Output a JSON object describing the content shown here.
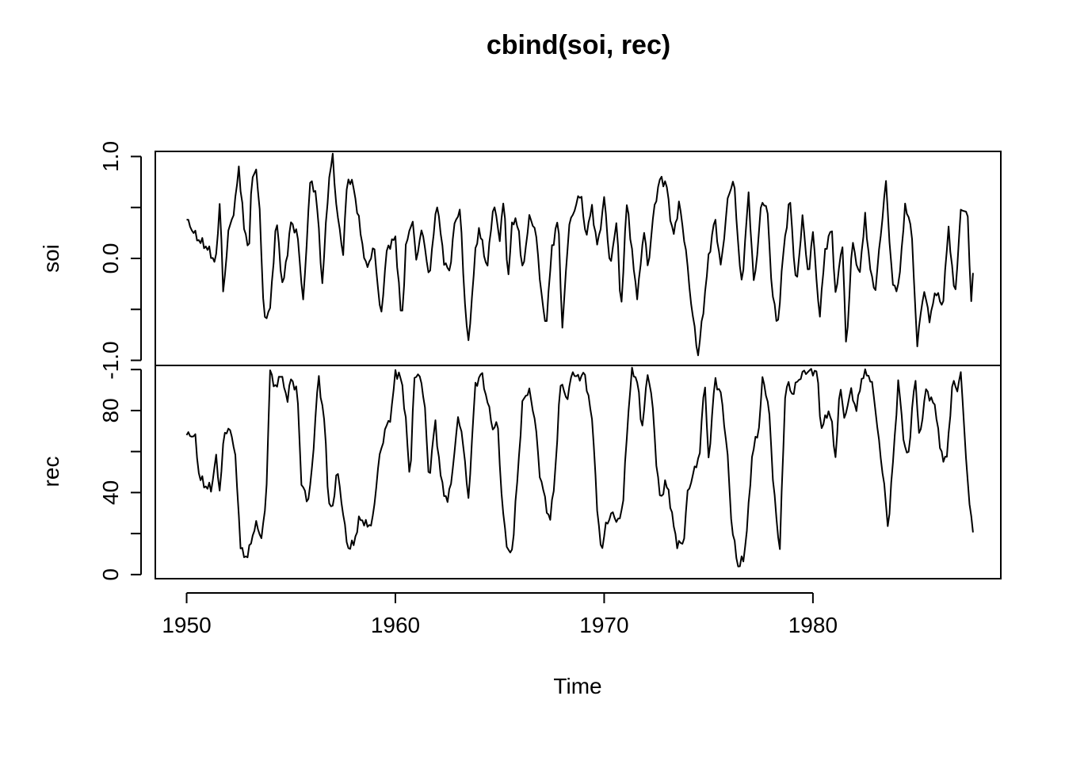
{
  "chart_data": {
    "type": "line",
    "title": "cbind(soi, rec)",
    "xlabel": "Time",
    "x": {
      "start": 1950.0,
      "end": 1987.667,
      "step": 0.0833333,
      "ticks": [
        1950,
        1960,
        1970,
        1980
      ],
      "tick_labels": [
        "1950",
        "1960",
        "1970",
        "1980"
      ],
      "range": [
        1948.5,
        1989.0
      ]
    },
    "panels": [
      {
        "name": "soi",
        "ylabel": "soi",
        "ylim": [
          -1.05,
          1.05
        ],
        "ticks": [
          -1.0,
          -0.5,
          0.0,
          0.5,
          1.0
        ],
        "tick_labels": [
          "-1.0",
          "",
          "0.0",
          "",
          "1.0"
        ],
        "anchors": [
          [
            1950.0,
            0.38
          ],
          [
            1950.5,
            0.2
          ],
          [
            1951.0,
            0.1
          ],
          [
            1951.4,
            -0.05
          ],
          [
            1951.6,
            0.6
          ],
          [
            1951.75,
            -0.35
          ],
          [
            1952.0,
            0.25
          ],
          [
            1952.3,
            0.5
          ],
          [
            1952.5,
            0.9
          ],
          [
            1952.75,
            0.3
          ],
          [
            1953.0,
            0.1
          ],
          [
            1953.1,
            0.75
          ],
          [
            1953.3,
            0.9
          ],
          [
            1953.5,
            0.5
          ],
          [
            1953.7,
            -0.6
          ],
          [
            1954.0,
            -0.5
          ],
          [
            1954.3,
            0.4
          ],
          [
            1954.6,
            -0.3
          ],
          [
            1955.0,
            0.35
          ],
          [
            1955.3,
            0.25
          ],
          [
            1955.6,
            -0.45
          ],
          [
            1955.9,
            0.75
          ],
          [
            1956.2,
            0.65
          ],
          [
            1956.5,
            -0.25
          ],
          [
            1956.8,
            0.75
          ],
          [
            1957.0,
            1.0
          ],
          [
            1957.2,
            0.45
          ],
          [
            1957.5,
            0.05
          ],
          [
            1957.7,
            0.8
          ],
          [
            1958.0,
            0.7
          ],
          [
            1958.3,
            0.3
          ],
          [
            1958.6,
            -0.1
          ],
          [
            1959.0,
            0.1
          ],
          [
            1959.3,
            -0.6
          ],
          [
            1959.6,
            0.1
          ],
          [
            1960.0,
            0.2
          ],
          [
            1960.3,
            -0.65
          ],
          [
            1960.5,
            0.1
          ],
          [
            1960.8,
            0.4
          ],
          [
            1961.0,
            0.0
          ],
          [
            1961.3,
            0.3
          ],
          [
            1961.6,
            -0.2
          ],
          [
            1962.0,
            0.55
          ],
          [
            1962.3,
            0.0
          ],
          [
            1962.6,
            -0.15
          ],
          [
            1962.8,
            0.3
          ],
          [
            1963.1,
            0.5
          ],
          [
            1963.3,
            -0.35
          ],
          [
            1963.5,
            -0.85
          ],
          [
            1963.8,
            0.0
          ],
          [
            1964.0,
            0.3
          ],
          [
            1964.4,
            -0.1
          ],
          [
            1964.7,
            0.55
          ],
          [
            1965.0,
            0.2
          ],
          [
            1965.2,
            0.6
          ],
          [
            1965.4,
            -0.25
          ],
          [
            1965.6,
            0.4
          ],
          [
            1965.9,
            0.3
          ],
          [
            1966.1,
            -0.15
          ],
          [
            1966.4,
            0.4
          ],
          [
            1966.7,
            0.3
          ],
          [
            1967.0,
            -0.35
          ],
          [
            1967.2,
            -0.7
          ],
          [
            1967.5,
            0.1
          ],
          [
            1967.8,
            0.4
          ],
          [
            1968.0,
            -0.7
          ],
          [
            1968.3,
            0.3
          ],
          [
            1968.6,
            0.5
          ],
          [
            1968.9,
            0.65
          ],
          [
            1969.1,
            0.2
          ],
          [
            1969.4,
            0.5
          ],
          [
            1969.7,
            0.1
          ],
          [
            1970.0,
            0.6
          ],
          [
            1970.3,
            -0.1
          ],
          [
            1970.6,
            0.4
          ],
          [
            1970.8,
            -0.55
          ],
          [
            1971.1,
            0.6
          ],
          [
            1971.3,
            0.1
          ],
          [
            1971.6,
            -0.4
          ],
          [
            1971.9,
            0.3
          ],
          [
            1972.1,
            -0.1
          ],
          [
            1972.4,
            0.5
          ],
          [
            1972.7,
            0.8
          ],
          [
            1973.0,
            0.7
          ],
          [
            1973.3,
            0.2
          ],
          [
            1973.6,
            0.55
          ],
          [
            1973.9,
            0.1
          ],
          [
            1974.2,
            -0.5
          ],
          [
            1974.5,
            -0.95
          ],
          [
            1974.7,
            -0.6
          ],
          [
            1975.0,
            0.0
          ],
          [
            1975.3,
            0.4
          ],
          [
            1975.6,
            -0.1
          ],
          [
            1975.9,
            0.55
          ],
          [
            1976.2,
            0.8
          ],
          [
            1976.4,
            0.2
          ],
          [
            1976.6,
            -0.3
          ],
          [
            1976.9,
            0.65
          ],
          [
            1977.2,
            -0.3
          ],
          [
            1977.5,
            0.5
          ],
          [
            1977.8,
            0.55
          ],
          [
            1978.0,
            -0.2
          ],
          [
            1978.3,
            -0.7
          ],
          [
            1978.6,
            0.1
          ],
          [
            1978.9,
            0.6
          ],
          [
            1979.2,
            -0.3
          ],
          [
            1979.5,
            0.4
          ],
          [
            1979.8,
            -0.2
          ],
          [
            1980.0,
            0.3
          ],
          [
            1980.3,
            -0.6
          ],
          [
            1980.6,
            0.1
          ],
          [
            1980.9,
            0.3
          ],
          [
            1981.1,
            -0.4
          ],
          [
            1981.4,
            0.2
          ],
          [
            1981.6,
            -0.9
          ],
          [
            1981.9,
            0.2
          ],
          [
            1982.2,
            -0.2
          ],
          [
            1982.5,
            0.4
          ],
          [
            1982.8,
            -0.2
          ],
          [
            1983.0,
            -0.3
          ],
          [
            1983.3,
            0.35
          ],
          [
            1983.5,
            0.75
          ],
          [
            1983.8,
            -0.25
          ],
          [
            1984.1,
            -0.3
          ],
          [
            1984.4,
            0.5
          ],
          [
            1984.7,
            0.35
          ],
          [
            1985.0,
            -0.85
          ],
          [
            1985.3,
            -0.3
          ],
          [
            1985.6,
            -0.6
          ],
          [
            1985.9,
            -0.3
          ],
          [
            1986.2,
            -0.5
          ],
          [
            1986.5,
            0.3
          ],
          [
            1986.8,
            -0.4
          ],
          [
            1987.1,
            0.5
          ],
          [
            1987.4,
            0.45
          ],
          [
            1987.6,
            -0.5
          ],
          [
            1987.7,
            0.05
          ]
        ]
      },
      {
        "name": "rec",
        "ylabel": "rec",
        "ylim": [
          -2,
          102
        ],
        "ticks": [
          0,
          20,
          40,
          60,
          80,
          100
        ],
        "tick_labels": [
          "0",
          "",
          "40",
          "",
          "80",
          ""
        ],
        "anchors": [
          [
            1950.0,
            68
          ],
          [
            1950.4,
            68
          ],
          [
            1950.6,
            48
          ],
          [
            1950.9,
            43
          ],
          [
            1951.2,
            42
          ],
          [
            1951.4,
            58
          ],
          [
            1951.6,
            40
          ],
          [
            1951.8,
            70
          ],
          [
            1952.1,
            70
          ],
          [
            1952.3,
            62
          ],
          [
            1952.6,
            12
          ],
          [
            1952.8,
            8
          ],
          [
            1953.0,
            12
          ],
          [
            1953.3,
            25
          ],
          [
            1953.6,
            18
          ],
          [
            1953.8,
            35
          ],
          [
            1954.0,
            99
          ],
          [
            1954.3,
            90
          ],
          [
            1954.5,
            99
          ],
          [
            1954.8,
            85
          ],
          [
            1955.0,
            95
          ],
          [
            1955.3,
            90
          ],
          [
            1955.5,
            45
          ],
          [
            1955.8,
            35
          ],
          [
            1956.0,
            50
          ],
          [
            1956.3,
            97
          ],
          [
            1956.6,
            75
          ],
          [
            1956.8,
            35
          ],
          [
            1957.0,
            32
          ],
          [
            1957.2,
            52
          ],
          [
            1957.5,
            30
          ],
          [
            1957.7,
            13
          ],
          [
            1958.0,
            15
          ],
          [
            1958.3,
            28
          ],
          [
            1958.6,
            24
          ],
          [
            1958.9,
            25
          ],
          [
            1959.2,
            55
          ],
          [
            1959.5,
            70
          ],
          [
            1959.8,
            78
          ],
          [
            1960.0,
            99
          ],
          [
            1960.3,
            95
          ],
          [
            1960.5,
            75
          ],
          [
            1960.7,
            45
          ],
          [
            1960.9,
            95
          ],
          [
            1961.1,
            99
          ],
          [
            1961.4,
            85
          ],
          [
            1961.6,
            45
          ],
          [
            1961.9,
            75
          ],
          [
            1962.2,
            45
          ],
          [
            1962.5,
            35
          ],
          [
            1962.8,
            55
          ],
          [
            1963.0,
            78
          ],
          [
            1963.3,
            60
          ],
          [
            1963.5,
            35
          ],
          [
            1963.8,
            90
          ],
          [
            1964.1,
            99
          ],
          [
            1964.4,
            85
          ],
          [
            1964.7,
            70
          ],
          [
            1964.9,
            75
          ],
          [
            1965.1,
            35
          ],
          [
            1965.4,
            10
          ],
          [
            1965.6,
            12
          ],
          [
            1965.9,
            55
          ],
          [
            1966.1,
            85
          ],
          [
            1966.4,
            90
          ],
          [
            1966.7,
            75
          ],
          [
            1966.9,
            50
          ],
          [
            1967.2,
            35
          ],
          [
            1967.4,
            25
          ],
          [
            1967.7,
            55
          ],
          [
            1967.9,
            95
          ],
          [
            1968.2,
            85
          ],
          [
            1968.5,
            99
          ],
          [
            1968.8,
            95
          ],
          [
            1969.0,
            99
          ],
          [
            1969.3,
            85
          ],
          [
            1969.5,
            65
          ],
          [
            1969.7,
            25
          ],
          [
            1969.9,
            12
          ],
          [
            1970.1,
            25
          ],
          [
            1970.4,
            30
          ],
          [
            1970.7,
            25
          ],
          [
            1970.9,
            35
          ],
          [
            1971.1,
            70
          ],
          [
            1971.3,
            99
          ],
          [
            1971.6,
            95
          ],
          [
            1971.8,
            70
          ],
          [
            1972.1,
            99
          ],
          [
            1972.3,
            85
          ],
          [
            1972.5,
            55
          ],
          [
            1972.7,
            35
          ],
          [
            1972.9,
            45
          ],
          [
            1973.1,
            40
          ],
          [
            1973.3,
            25
          ],
          [
            1973.5,
            15
          ],
          [
            1973.8,
            15
          ],
          [
            1974.0,
            40
          ],
          [
            1974.3,
            50
          ],
          [
            1974.6,
            60
          ],
          [
            1974.8,
            98
          ],
          [
            1975.0,
            55
          ],
          [
            1975.3,
            95
          ],
          [
            1975.6,
            88
          ],
          [
            1975.9,
            60
          ],
          [
            1976.1,
            25
          ],
          [
            1976.4,
            4
          ],
          [
            1976.7,
            8
          ],
          [
            1976.9,
            30
          ],
          [
            1977.1,
            60
          ],
          [
            1977.4,
            70
          ],
          [
            1977.6,
            97
          ],
          [
            1977.9,
            80
          ],
          [
            1978.1,
            45
          ],
          [
            1978.4,
            10
          ],
          [
            1978.7,
            95
          ],
          [
            1979.0,
            88
          ],
          [
            1979.3,
            95
          ],
          [
            1979.6,
            99
          ],
          [
            1979.9,
            99
          ],
          [
            1980.2,
            99
          ],
          [
            1980.4,
            70
          ],
          [
            1980.7,
            80
          ],
          [
            1980.9,
            75
          ],
          [
            1981.1,
            55
          ],
          [
            1981.3,
            95
          ],
          [
            1981.5,
            75
          ],
          [
            1981.8,
            90
          ],
          [
            1982.1,
            80
          ],
          [
            1982.3,
            95
          ],
          [
            1982.6,
            99
          ],
          [
            1982.9,
            90
          ],
          [
            1983.1,
            70
          ],
          [
            1983.4,
            45
          ],
          [
            1983.6,
            22
          ],
          [
            1983.8,
            50
          ],
          [
            1984.1,
            95
          ],
          [
            1984.4,
            60
          ],
          [
            1984.6,
            60
          ],
          [
            1984.9,
            98
          ],
          [
            1985.1,
            65
          ],
          [
            1985.4,
            90
          ],
          [
            1985.7,
            85
          ],
          [
            1985.9,
            80
          ],
          [
            1986.1,
            60
          ],
          [
            1986.4,
            55
          ],
          [
            1986.7,
            95
          ],
          [
            1986.9,
            90
          ],
          [
            1987.1,
            98
          ],
          [
            1987.4,
            45
          ],
          [
            1987.7,
            18
          ]
        ]
      }
    ]
  }
}
